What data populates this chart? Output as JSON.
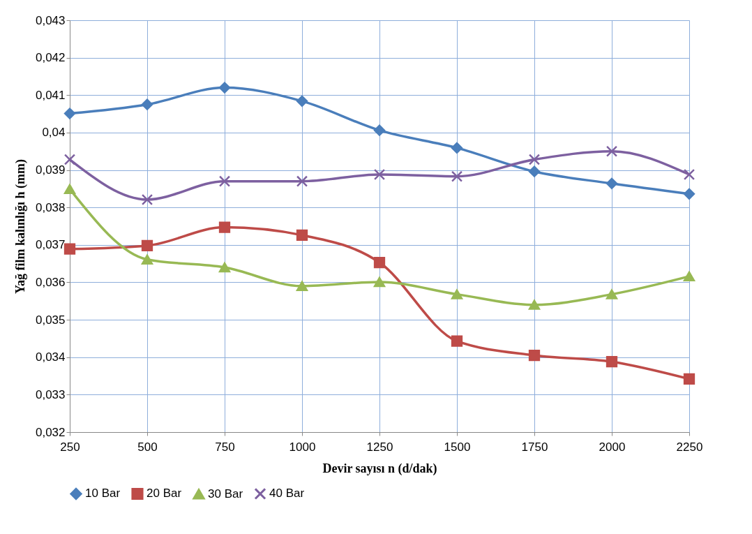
{
  "chart_data": {
    "type": "line",
    "xlabel": "Devir sayısı n (d/dak)",
    "ylabel": "Yağ film kalınlığı h (mm)",
    "x": [
      250,
      500,
      750,
      1000,
      1250,
      1500,
      1750,
      2000,
      2250
    ],
    "xlim": [
      250,
      2250
    ],
    "xticks": [
      250,
      500,
      750,
      1000,
      1250,
      1500,
      1750,
      2000,
      2250
    ],
    "ylim": [
      0.032,
      0.043
    ],
    "yticks": [
      {
        "value": 0.032,
        "label": "0,032"
      },
      {
        "value": 0.033,
        "label": "0,033"
      },
      {
        "value": 0.034,
        "label": "0,034"
      },
      {
        "value": 0.035,
        "label": "0,035"
      },
      {
        "value": 0.036,
        "label": "0,036"
      },
      {
        "value": 0.037,
        "label": "0,037"
      },
      {
        "value": 0.038,
        "label": "0,038"
      },
      {
        "value": 0.039,
        "label": "0,039"
      },
      {
        "value": 0.04,
        "label": "0,04"
      },
      {
        "value": 0.041,
        "label": "0,041"
      },
      {
        "value": 0.042,
        "label": "0,042"
      },
      {
        "value": 0.043,
        "label": "0,043"
      }
    ],
    "series": [
      {
        "name": "10 Bar",
        "color": "#4a7ebb",
        "marker": "diamond",
        "values": [
          0.04051,
          0.04075,
          0.0412,
          0.04084,
          0.04006,
          0.03959,
          0.03896,
          0.03864,
          0.03836
        ]
      },
      {
        "name": "20 Bar",
        "color": "#be4b48",
        "marker": "square",
        "values": [
          0.03689,
          0.03698,
          0.03747,
          0.03726,
          0.03653,
          0.03443,
          0.03405,
          0.03388,
          0.03342
        ]
      },
      {
        "name": "30 Bar",
        "color": "#98b954",
        "marker": "triangle",
        "values": [
          0.03849,
          0.03661,
          0.0364,
          0.0359,
          0.03601,
          0.03568,
          0.0354,
          0.03568,
          0.03616
        ]
      },
      {
        "name": "40 Bar",
        "color": "#7d60a0",
        "marker": "cross",
        "values": [
          0.03928,
          0.03821,
          0.0387,
          0.0387,
          0.03888,
          0.03883,
          0.03928,
          0.0395,
          0.03888
        ]
      }
    ],
    "grid": true,
    "legend": "bottom",
    "line_style": "solid"
  }
}
